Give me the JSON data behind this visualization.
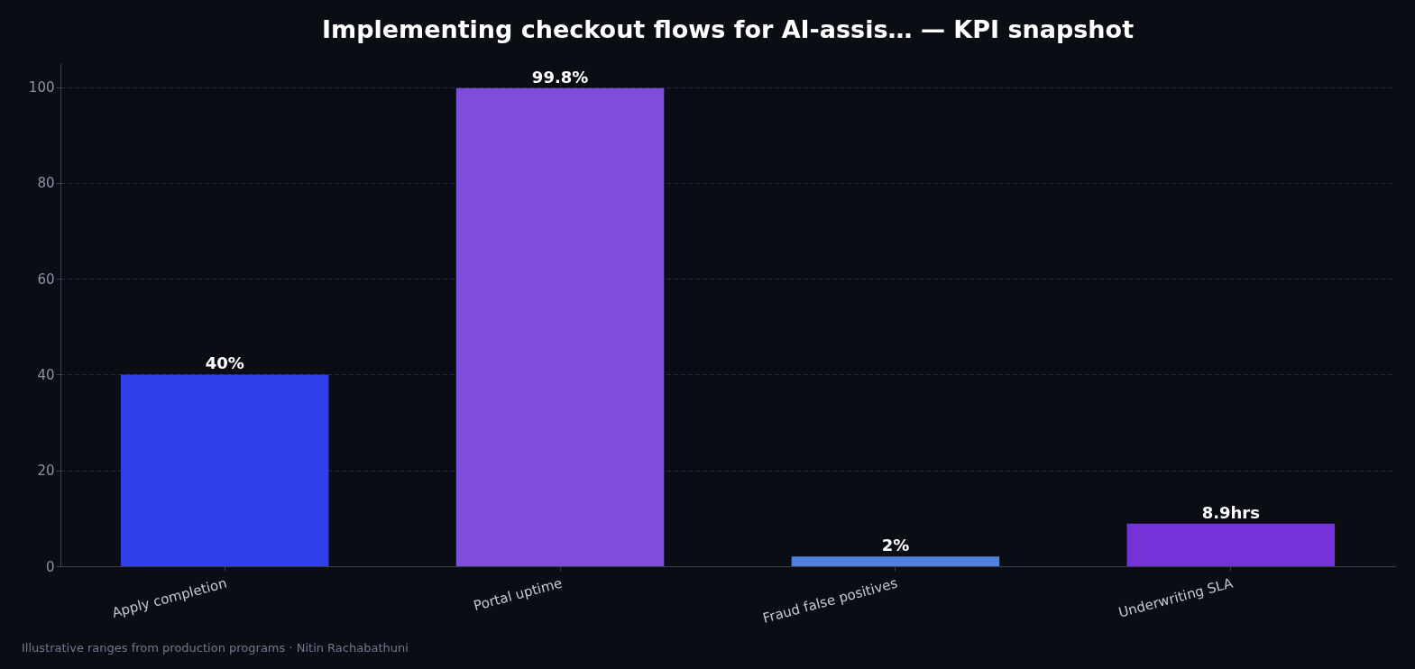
{
  "chart_data": {
    "type": "bar",
    "title": "Implementing checkout flows for AI-assis… — KPI snapshot",
    "categories": [
      "Apply completion",
      "Portal uptime",
      "Fraud false positives",
      "Underwriting SLA"
    ],
    "values": [
      40,
      99.8,
      2,
      8.9
    ],
    "colors": [
      "#2f40ea",
      "#7e4ddc",
      "#4f80dc",
      "#7433d8"
    ],
    "value_labels": [
      "40%",
      "99.8%",
      "2%",
      "8.9hrs"
    ],
    "ylim": [
      0,
      105
    ],
    "yticks": [
      0,
      20,
      40,
      60,
      80,
      100
    ],
    "grid": "y",
    "annotations": [
      "Illustrative ranges from production programs · Nitin Rachabathuni"
    ]
  }
}
